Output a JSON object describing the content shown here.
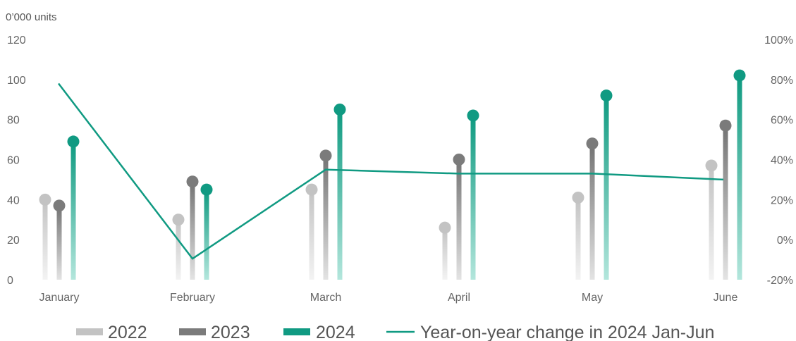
{
  "chart_data": {
    "type": "bar",
    "unit_label": "0’000 units",
    "categories": [
      "January",
      "February",
      "March",
      "April",
      "May",
      "June"
    ],
    "series": [
      {
        "name": "2022",
        "axis": "left",
        "color": "#c3c3c3",
        "values": [
          40,
          30,
          45,
          26,
          41,
          57
        ]
      },
      {
        "name": "2023",
        "axis": "left",
        "color": "#7b7b7b",
        "values": [
          37,
          49,
          62,
          60,
          68,
          77
        ]
      },
      {
        "name": "2024",
        "axis": "left",
        "color": "#109a82",
        "values": [
          69,
          45,
          85,
          82,
          92,
          102
        ]
      },
      {
        "name": "Year-on-year change in 2024 Jan-Jun",
        "axis": "right",
        "type": "line",
        "color": "#109a82",
        "values": [
          78,
          -9.5,
          35,
          33,
          33,
          30
        ]
      }
    ],
    "y_left": {
      "min": 0,
      "max": 120,
      "ticks": [
        "0",
        "20",
        "40",
        "60",
        "80",
        "100",
        "120"
      ]
    },
    "y_right": {
      "min": -20,
      "max": 100,
      "ticks": [
        "-20%",
        "0%",
        "20%",
        "40%",
        "60%",
        "80%",
        "100%"
      ]
    },
    "legend_position": "bottom",
    "grid": false
  }
}
